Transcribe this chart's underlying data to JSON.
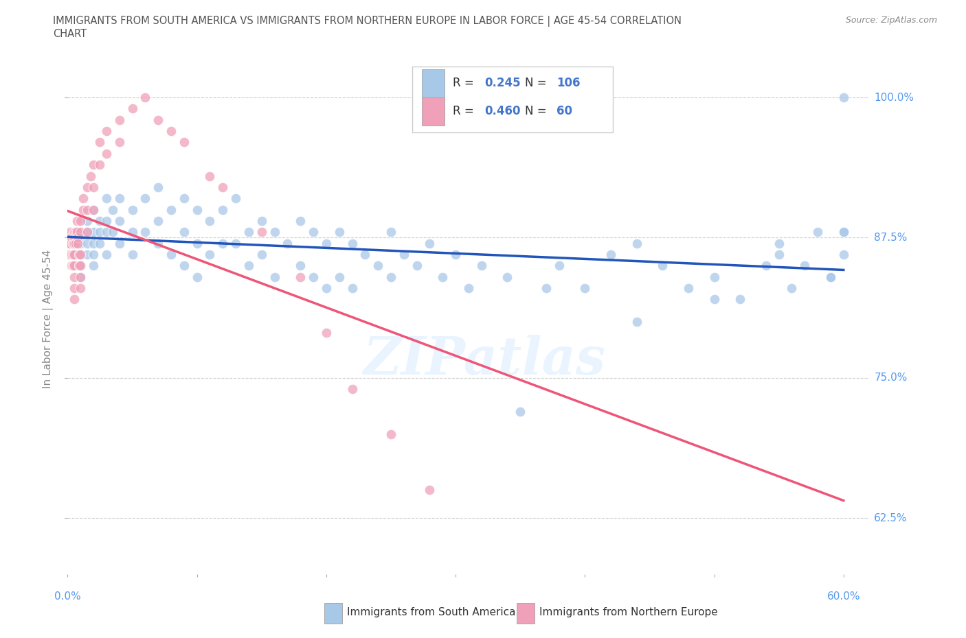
{
  "title_line1": "IMMIGRANTS FROM SOUTH AMERICA VS IMMIGRANTS FROM NORTHERN EUROPE IN LABOR FORCE | AGE 45-54 CORRELATION",
  "title_line2": "CHART",
  "source": "Source: ZipAtlas.com",
  "ylabel": "In Labor Force | Age 45-54",
  "xlim": [
    0.0,
    0.62
  ],
  "ylim": [
    0.575,
    1.03
  ],
  "xticks": [
    0.0,
    0.1,
    0.2,
    0.3,
    0.4,
    0.5,
    0.6
  ],
  "xticklabels_show": [
    "0.0%",
    "60.0%"
  ],
  "yticks": [
    0.625,
    0.75,
    0.875,
    1.0
  ],
  "yticklabels": [
    "62.5%",
    "75.0%",
    "87.5%",
    "100.0%"
  ],
  "blue_color": "#A8C8E8",
  "pink_color": "#F0A0B8",
  "blue_line_color": "#2255BB",
  "pink_line_color": "#EE5577",
  "legend_R_blue": "0.245",
  "legend_N_blue": "106",
  "legend_R_pink": "0.460",
  "legend_N_pink": "60",
  "legend_label_blue": "Immigrants from South America",
  "legend_label_pink": "Immigrants from Northern Europe",
  "background_color": "#ffffff",
  "grid_color": "#bbbbbb",
  "title_color": "#555555",
  "tick_color": "#5599EE",
  "ylabel_color": "#888888",
  "source_color": "#888888",
  "watermark": "ZIPatlas",
  "blue_x": [
    0.005,
    0.005,
    0.007,
    0.008,
    0.009,
    0.01,
    0.01,
    0.01,
    0.01,
    0.01,
    0.015,
    0.015,
    0.015,
    0.015,
    0.02,
    0.02,
    0.02,
    0.02,
    0.02,
    0.025,
    0.025,
    0.025,
    0.03,
    0.03,
    0.03,
    0.03,
    0.035,
    0.035,
    0.04,
    0.04,
    0.04,
    0.05,
    0.05,
    0.05,
    0.06,
    0.06,
    0.07,
    0.07,
    0.07,
    0.08,
    0.08,
    0.09,
    0.09,
    0.09,
    0.1,
    0.1,
    0.1,
    0.11,
    0.11,
    0.12,
    0.12,
    0.13,
    0.13,
    0.14,
    0.14,
    0.15,
    0.15,
    0.16,
    0.16,
    0.17,
    0.18,
    0.18,
    0.19,
    0.19,
    0.2,
    0.2,
    0.21,
    0.21,
    0.22,
    0.22,
    0.23,
    0.24,
    0.25,
    0.25,
    0.26,
    0.27,
    0.28,
    0.29,
    0.3,
    0.31,
    0.32,
    0.34,
    0.35,
    0.37,
    0.38,
    0.4,
    0.42,
    0.44,
    0.46,
    0.48,
    0.5,
    0.52,
    0.54,
    0.56,
    0.55,
    0.57,
    0.58,
    0.44,
    0.5,
    0.59,
    0.55,
    0.6,
    0.59,
    0.6,
    0.6,
    0.6
  ],
  "blue_y": [
    0.87,
    0.86,
    0.88,
    0.87,
    0.86,
    0.875,
    0.87,
    0.86,
    0.85,
    0.84,
    0.89,
    0.88,
    0.87,
    0.86,
    0.9,
    0.88,
    0.87,
    0.86,
    0.85,
    0.89,
    0.88,
    0.87,
    0.91,
    0.89,
    0.88,
    0.86,
    0.9,
    0.88,
    0.91,
    0.89,
    0.87,
    0.9,
    0.88,
    0.86,
    0.91,
    0.88,
    0.92,
    0.89,
    0.87,
    0.9,
    0.86,
    0.91,
    0.88,
    0.85,
    0.9,
    0.87,
    0.84,
    0.89,
    0.86,
    0.9,
    0.87,
    0.91,
    0.87,
    0.88,
    0.85,
    0.89,
    0.86,
    0.88,
    0.84,
    0.87,
    0.89,
    0.85,
    0.88,
    0.84,
    0.87,
    0.83,
    0.88,
    0.84,
    0.87,
    0.83,
    0.86,
    0.85,
    0.88,
    0.84,
    0.86,
    0.85,
    0.87,
    0.84,
    0.86,
    0.83,
    0.85,
    0.84,
    0.72,
    0.83,
    0.85,
    0.83,
    0.86,
    0.87,
    0.85,
    0.83,
    0.84,
    0.82,
    0.85,
    0.83,
    0.87,
    0.85,
    0.88,
    0.8,
    0.82,
    0.84,
    0.86,
    0.88,
    0.84,
    0.86,
    0.88,
    1.0
  ],
  "pink_x": [
    0.001,
    0.001,
    0.002,
    0.002,
    0.003,
    0.003,
    0.003,
    0.004,
    0.004,
    0.004,
    0.005,
    0.005,
    0.005,
    0.005,
    0.005,
    0.005,
    0.005,
    0.005,
    0.006,
    0.006,
    0.007,
    0.007,
    0.008,
    0.008,
    0.009,
    0.009,
    0.01,
    0.01,
    0.01,
    0.01,
    0.01,
    0.01,
    0.012,
    0.012,
    0.015,
    0.015,
    0.015,
    0.018,
    0.02,
    0.02,
    0.02,
    0.025,
    0.025,
    0.03,
    0.03,
    0.04,
    0.04,
    0.05,
    0.06,
    0.07,
    0.08,
    0.09,
    0.11,
    0.12,
    0.15,
    0.18,
    0.2,
    0.22,
    0.25,
    0.28
  ],
  "pink_y": [
    0.87,
    0.86,
    0.88,
    0.87,
    0.875,
    0.86,
    0.85,
    0.87,
    0.86,
    0.85,
    0.88,
    0.875,
    0.87,
    0.86,
    0.85,
    0.84,
    0.83,
    0.82,
    0.88,
    0.87,
    0.89,
    0.88,
    0.875,
    0.87,
    0.86,
    0.85,
    0.89,
    0.88,
    0.86,
    0.85,
    0.84,
    0.83,
    0.91,
    0.9,
    0.92,
    0.9,
    0.88,
    0.93,
    0.94,
    0.92,
    0.9,
    0.96,
    0.94,
    0.97,
    0.95,
    0.98,
    0.96,
    0.99,
    1.0,
    0.98,
    0.97,
    0.96,
    0.93,
    0.92,
    0.88,
    0.84,
    0.79,
    0.74,
    0.7,
    0.65
  ]
}
